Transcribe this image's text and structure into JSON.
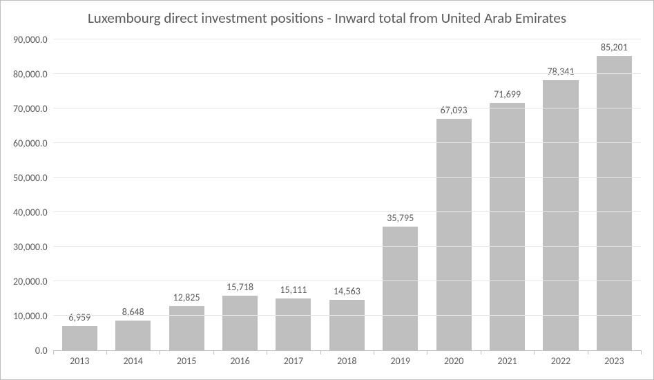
{
  "chart": {
    "type": "bar",
    "title": "Luxembourg direct investment positions -  Inward total from United Arab Emirates",
    "title_fontsize": 21,
    "title_color": "#595959",
    "categories": [
      "2013",
      "2014",
      "2015",
      "2016",
      "2017",
      "2018",
      "2019",
      "2020",
      "2021",
      "2022",
      "2023"
    ],
    "values": [
      6959,
      8648,
      12825,
      15718,
      15111,
      14563,
      35795,
      67093,
      71699,
      78341,
      85201
    ],
    "value_labels": [
      "6,959",
      "8,648",
      "12,825",
      "15,718",
      "15,111",
      "14,563",
      "35,795",
      "67,093",
      "71,699",
      "78,341",
      "85,201"
    ],
    "bar_color": "#bfbfbf",
    "bar_width": 0.66,
    "ylim": [
      0,
      90000
    ],
    "ytick_step": 10000,
    "ytick_labels": [
      "0.0",
      "10,000.0",
      "20,000.0",
      "30,000.0",
      "40,000.0",
      "50,000.0",
      "60,000.0",
      "70,000.0",
      "80,000.0",
      "90,000.0"
    ],
    "background_color": "#ffffff",
    "grid_color": "#e6e6e6",
    "axis_line_color": "#bfbfbf",
    "label_color": "#595959",
    "label_fontsize": 14,
    "data_label_fontsize": 14,
    "border_color": "#bfbfbf"
  }
}
